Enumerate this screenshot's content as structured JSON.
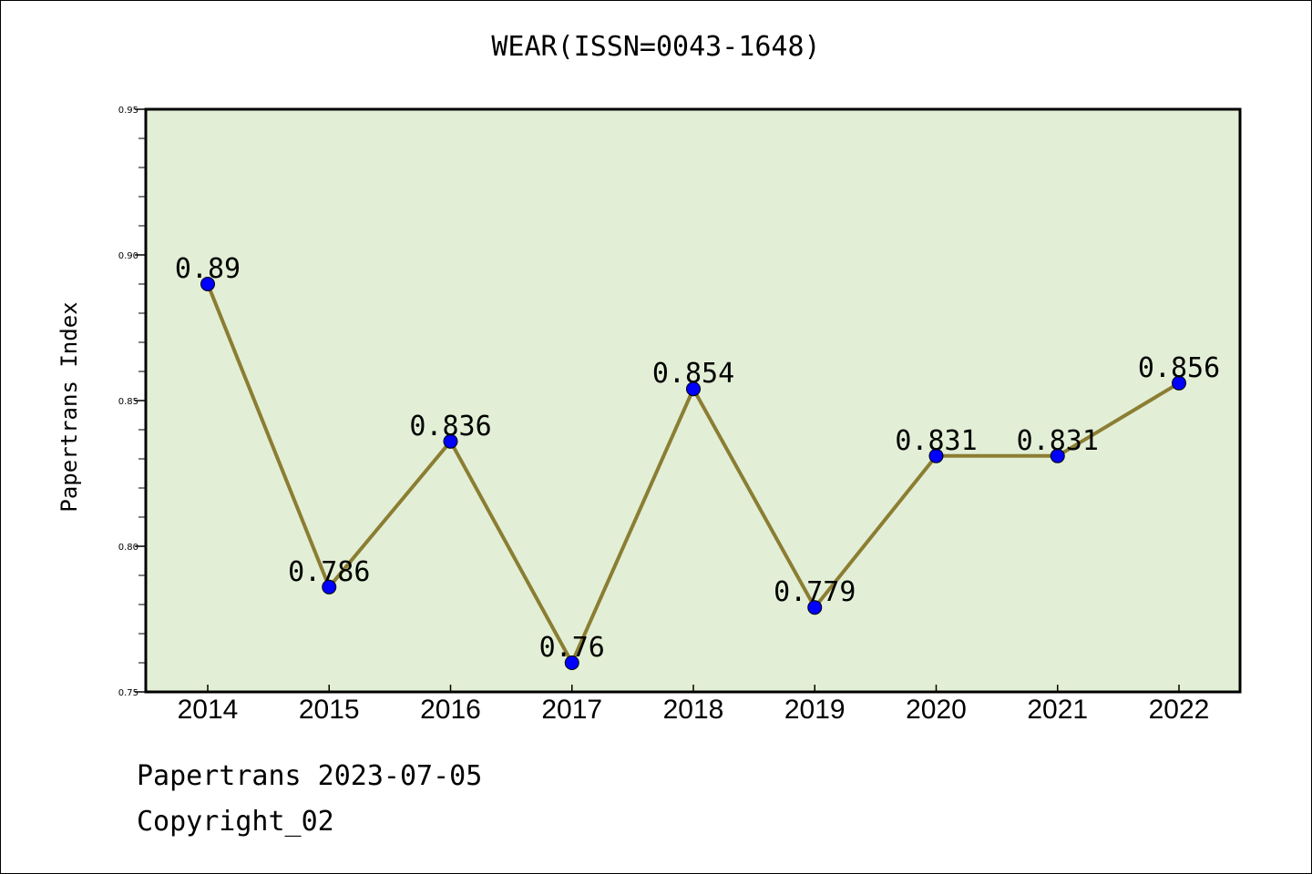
{
  "colors": {
    "plot_background": "#e2efd6",
    "line": "#8b7d32",
    "marker": "#0000ff",
    "axis": "#000000"
  },
  "footer": {
    "line1": "Papertrans 2023-07-05",
    "line2": "Copyright_02"
  },
  "chart_data": {
    "type": "line",
    "title": "WEAR(ISSN=0043-1648)",
    "xlabel": "",
    "ylabel": "Papertrans Index",
    "categories": [
      "2014",
      "2015",
      "2016",
      "2017",
      "2018",
      "2019",
      "2020",
      "2021",
      "2022"
    ],
    "series": [
      {
        "values": [
          0.89,
          0.786,
          0.836,
          0.76,
          0.854,
          0.779,
          0.831,
          0.831,
          0.856
        ],
        "labels": [
          "0.89",
          "0.786",
          "0.836",
          "0.76",
          "0.854",
          "0.779",
          "0.831",
          "0.831",
          "0.856"
        ]
      }
    ],
    "ylim": [
      0.75,
      0.95
    ],
    "yticks": [
      0.75,
      0.8,
      0.85,
      0.9,
      0.95
    ],
    "ytick_labels": [
      "0.75",
      "0.80",
      "0.85",
      "0.90",
      "0.95"
    ],
    "y_minor_step": 0.01,
    "grid": false,
    "legend": "none"
  }
}
